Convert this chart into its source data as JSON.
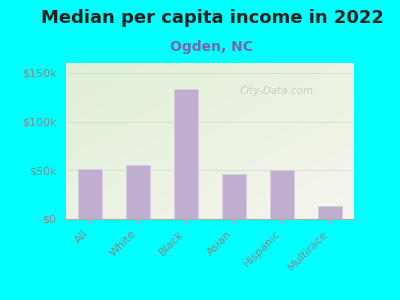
{
  "title": "Median per capita income in 2022",
  "subtitle": "Ogden, NC",
  "categories": [
    "All",
    "White",
    "Black",
    "Asian",
    "Hispanic",
    "Multirace"
  ],
  "values": [
    51000,
    55000,
    133000,
    46000,
    50000,
    13000
  ],
  "bar_color": "#c0aed1",
  "bar_edge_color": "#d8cce0",
  "ylim": [
    0,
    160000
  ],
  "yticks": [
    0,
    50000,
    100000,
    150000
  ],
  "ytick_labels": [
    "$0",
    "$50k",
    "$100k",
    "$150k"
  ],
  "bg_outer": "#00FFFF",
  "title_fontsize": 13,
  "subtitle_fontsize": 10,
  "subtitle_color": "#7766aa",
  "tick_label_color": "#888888",
  "watermark": "City-Data.com"
}
